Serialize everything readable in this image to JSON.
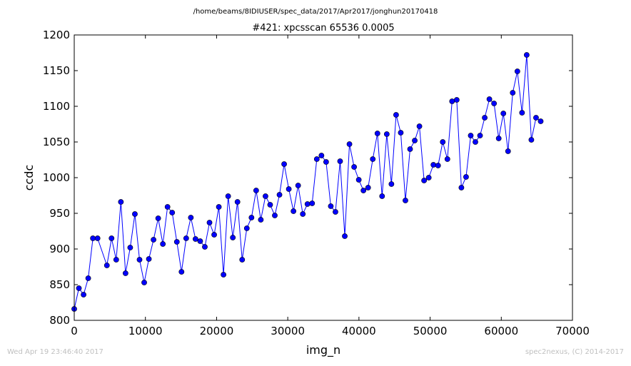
{
  "header": {
    "path": "/home/beams/8IDIUSER/spec_data/2017/Apr2017/jonghun20170418"
  },
  "footer": {
    "timestamp": "Wed Apr 19 23:46:40 2017",
    "credit": "spec2nexus, (C) 2014-2017"
  },
  "colors": {
    "series": "#0000ff",
    "axes": "#000000",
    "footer": "#c0c0c0",
    "background": "#ffffff"
  },
  "chart_data": {
    "type": "line",
    "title": "#421: xpcsscan 65536 0.0005",
    "xlabel": "img_n",
    "ylabel": "ccdc",
    "xlim": [
      0,
      70000
    ],
    "ylim": [
      800,
      1200
    ],
    "grid": false,
    "marker": "circle",
    "x_ticks": [
      0,
      10000,
      20000,
      30000,
      40000,
      50000,
      60000,
      70000
    ],
    "x_tick_labels": [
      "0",
      "10000",
      "20000",
      "30000",
      "40000",
      "50000",
      "60000",
      "70000"
    ],
    "y_ticks": [
      800,
      850,
      900,
      950,
      1000,
      1050,
      1100,
      1150,
      1200
    ],
    "y_tick_labels": [
      "800",
      "850",
      "900",
      "950",
      "1000",
      "1050",
      "1100",
      "1150",
      "1200"
    ],
    "series": [
      {
        "x": [
          0,
          655,
          1311,
          1966,
          2621,
          3277,
          4588,
          5243,
          5898,
          6554,
          7209,
          7864,
          8520,
          9175,
          9830,
          10486,
          11141,
          11796,
          12452,
          13107,
          13762,
          14418,
          15073,
          15728,
          16384,
          17039,
          17695,
          18350,
          19005,
          19661,
          20316,
          20971,
          21627,
          22282,
          22937,
          23593,
          24248,
          24904,
          25559,
          26214,
          26870,
          27525,
          28180,
          28836,
          29491,
          30146,
          30802,
          31457,
          32113,
          32768,
          33423,
          34079,
          34734,
          35389,
          36045,
          36700,
          37355,
          38011,
          38666,
          39322,
          39977,
          40632,
          41288,
          41943,
          42598,
          43254,
          43909,
          44564,
          45220,
          45875,
          46530,
          47186,
          47841,
          48497,
          49152,
          49807,
          50463,
          51118,
          51773,
          52429,
          53084,
          53739,
          54395,
          55050,
          55706,
          56361,
          57016,
          57672,
          58327,
          58982,
          59638,
          60293,
          60948,
          61604,
          62259,
          62915,
          63570,
          64225,
          64881,
          65536
        ],
        "y": [
          816,
          845,
          836,
          859,
          915,
          915,
          877,
          915,
          885,
          966,
          866,
          902,
          949,
          885,
          853,
          886,
          913,
          943,
          907,
          959,
          951,
          910,
          868,
          915,
          944,
          914,
          911,
          903,
          937,
          920,
          959,
          864,
          974,
          916,
          966,
          885,
          929,
          944,
          982,
          941,
          974,
          962,
          947,
          976,
          1019,
          984,
          953,
          989,
          949,
          963,
          964,
          1026,
          1031,
          1022,
          960,
          952,
          1023,
          918,
          1047,
          1015,
          997,
          982,
          986,
          1026,
          1062,
          974,
          1061,
          991,
          1088,
          1063,
          968,
          1040,
          1052,
          1072,
          996,
          1000,
          1018,
          1017,
          1050,
          1026,
          1107,
          1109,
          986,
          1001,
          1059,
          1050,
          1059,
          1084,
          1110,
          1104,
          1055,
          1090,
          1037,
          1119,
          1149,
          1091,
          1172,
          1053,
          1084,
          1079
        ]
      }
    ]
  }
}
